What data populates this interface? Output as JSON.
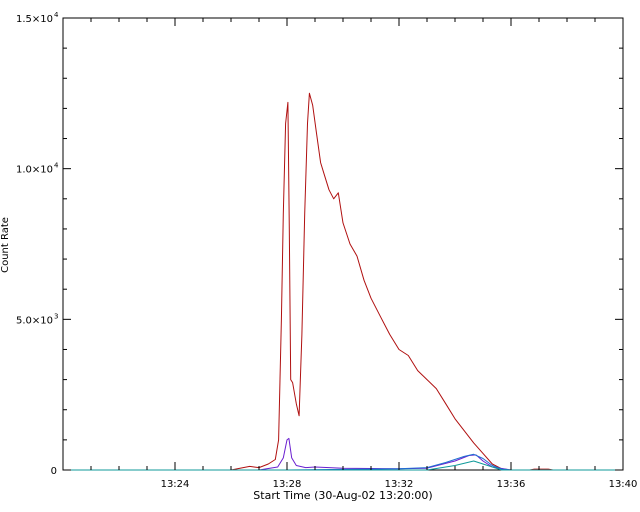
{
  "chart_data": {
    "type": "line",
    "title": "",
    "xlabel": "Start Time (30-Aug-02 13:20:00)",
    "ylabel": "Count Rate",
    "xlim": [
      "13:20:00",
      "13:40:00"
    ],
    "ylim": [
      0,
      15000
    ],
    "x_ticks": [
      "13:24",
      "13:28",
      "13:32",
      "13:36",
      "13:40"
    ],
    "y_ticks": [
      {
        "value": 0,
        "label": "0",
        "exp": ""
      },
      {
        "value": 5000,
        "label": "5.0×10",
        "exp": "3"
      },
      {
        "value": 10000,
        "label": "1.0×10",
        "exp": "4"
      },
      {
        "value": 15000,
        "label": "1.5×10",
        "exp": "4"
      }
    ],
    "grid": false,
    "legend": "none",
    "series": [
      {
        "color": "#b01010",
        "points": [
          [
            "13:20:00",
            0
          ],
          [
            "13:26:00",
            0
          ],
          [
            "13:26:40",
            120
          ],
          [
            "13:27:00",
            80
          ],
          [
            "13:27:20",
            200
          ],
          [
            "13:27:35",
            350
          ],
          [
            "13:27:42",
            1000
          ],
          [
            "13:27:48",
            5000
          ],
          [
            "13:27:52",
            8500
          ],
          [
            "13:27:57",
            11500
          ],
          [
            "13:28:02",
            12200
          ],
          [
            "13:28:05",
            8000
          ],
          [
            "13:28:08",
            3000
          ],
          [
            "13:28:12",
            2900
          ],
          [
            "13:28:20",
            2200
          ],
          [
            "13:28:26",
            1800
          ],
          [
            "13:28:32",
            4500
          ],
          [
            "13:28:38",
            8500
          ],
          [
            "13:28:44",
            11500
          ],
          [
            "13:28:48",
            12500
          ],
          [
            "13:28:55",
            12100
          ],
          [
            "13:29:03",
            11200
          ],
          [
            "13:29:12",
            10200
          ],
          [
            "13:29:20",
            9800
          ],
          [
            "13:29:30",
            9300
          ],
          [
            "13:29:40",
            9000
          ],
          [
            "13:29:50",
            9200
          ],
          [
            "13:30:00",
            8200
          ],
          [
            "13:30:15",
            7500
          ],
          [
            "13:30:30",
            7100
          ],
          [
            "13:30:45",
            6300
          ],
          [
            "13:31:00",
            5700
          ],
          [
            "13:31:20",
            5100
          ],
          [
            "13:31:40",
            4500
          ],
          [
            "13:32:00",
            4000
          ],
          [
            "13:32:20",
            3800
          ],
          [
            "13:32:40",
            3300
          ],
          [
            "13:33:00",
            3000
          ],
          [
            "13:33:20",
            2700
          ],
          [
            "13:33:40",
            2200
          ],
          [
            "13:34:00",
            1700
          ],
          [
            "13:34:20",
            1300
          ],
          [
            "13:34:40",
            900
          ],
          [
            "13:35:00",
            550
          ],
          [
            "13:35:20",
            200
          ],
          [
            "13:35:40",
            40
          ],
          [
            "13:36:00",
            0
          ],
          [
            "13:36:40",
            0
          ],
          [
            "13:36:50",
            30
          ],
          [
            "13:37:20",
            30
          ],
          [
            "13:37:30",
            0
          ],
          [
            "13:40:00",
            0
          ]
        ]
      },
      {
        "color": "#6a1fd0",
        "points": [
          [
            "13:20:00",
            0
          ],
          [
            "13:27:00",
            0
          ],
          [
            "13:27:40",
            100
          ],
          [
            "13:27:52",
            400
          ],
          [
            "13:28:00",
            1000
          ],
          [
            "13:28:04",
            1050
          ],
          [
            "13:28:10",
            400
          ],
          [
            "13:28:20",
            150
          ],
          [
            "13:28:40",
            80
          ],
          [
            "13:29:00",
            100
          ],
          [
            "13:30:00",
            60
          ],
          [
            "13:31:00",
            50
          ],
          [
            "13:32:00",
            40
          ],
          [
            "13:33:00",
            60
          ],
          [
            "13:34:00",
            300
          ],
          [
            "13:34:30",
            480
          ],
          [
            "13:34:45",
            500
          ],
          [
            "13:35:00",
            300
          ],
          [
            "13:35:20",
            100
          ],
          [
            "13:36:00",
            0
          ],
          [
            "13:40:00",
            0
          ]
        ]
      },
      {
        "color": "#1e6fd0",
        "points": [
          [
            "13:20:00",
            0
          ],
          [
            "13:28:00",
            0
          ],
          [
            "13:30:00",
            20
          ],
          [
            "13:32:00",
            40
          ],
          [
            "13:33:00",
            80
          ],
          [
            "13:33:40",
            250
          ],
          [
            "13:34:20",
            450
          ],
          [
            "13:34:40",
            520
          ],
          [
            "13:35:00",
            380
          ],
          [
            "13:35:20",
            150
          ],
          [
            "13:35:40",
            30
          ],
          [
            "13:36:00",
            0
          ],
          [
            "13:40:00",
            0
          ]
        ]
      },
      {
        "color": "#0f9a9a",
        "points": [
          [
            "13:20:00",
            0
          ],
          [
            "13:33:00",
            0
          ],
          [
            "13:34:00",
            150
          ],
          [
            "13:34:40",
            300
          ],
          [
            "13:35:00",
            200
          ],
          [
            "13:35:40",
            0
          ],
          [
            "13:40:00",
            0
          ]
        ]
      }
    ]
  }
}
